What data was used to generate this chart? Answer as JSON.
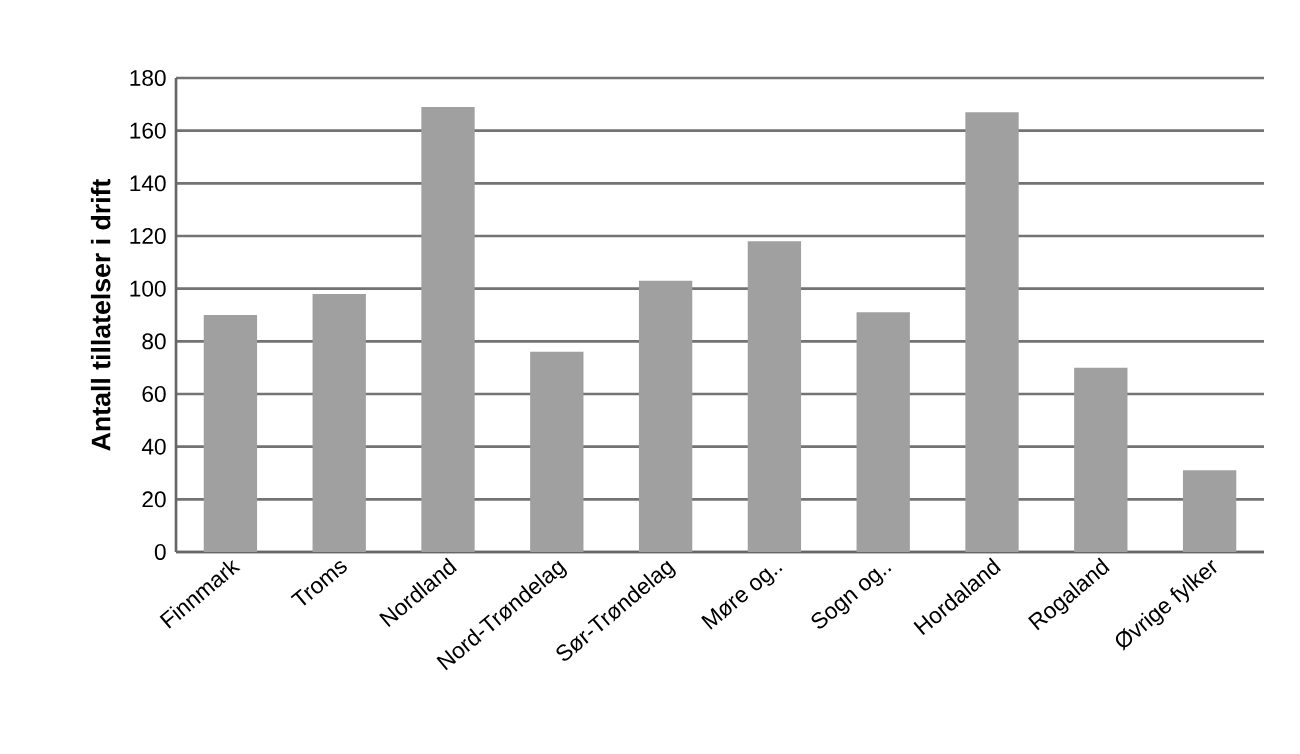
{
  "chart_data": {
    "type": "bar",
    "ylabel": "Antall tillatelser i drift",
    "categories": [
      "Finnmark",
      "Troms",
      "Nordland",
      "Nord-Trøndelag",
      "Sør-Trøndelag",
      "Møre og..",
      "Sogn og..",
      "Hordaland",
      "Rogaland",
      "Øvrige fylker"
    ],
    "values": [
      90,
      98,
      169,
      76,
      103,
      118,
      91,
      167,
      70,
      31
    ],
    "color": "#a0a0a0",
    "ylim": [
      0,
      180
    ],
    "yticks": [
      0,
      20,
      40,
      60,
      80,
      100,
      120,
      140,
      160,
      180
    ],
    "grid": "y"
  }
}
